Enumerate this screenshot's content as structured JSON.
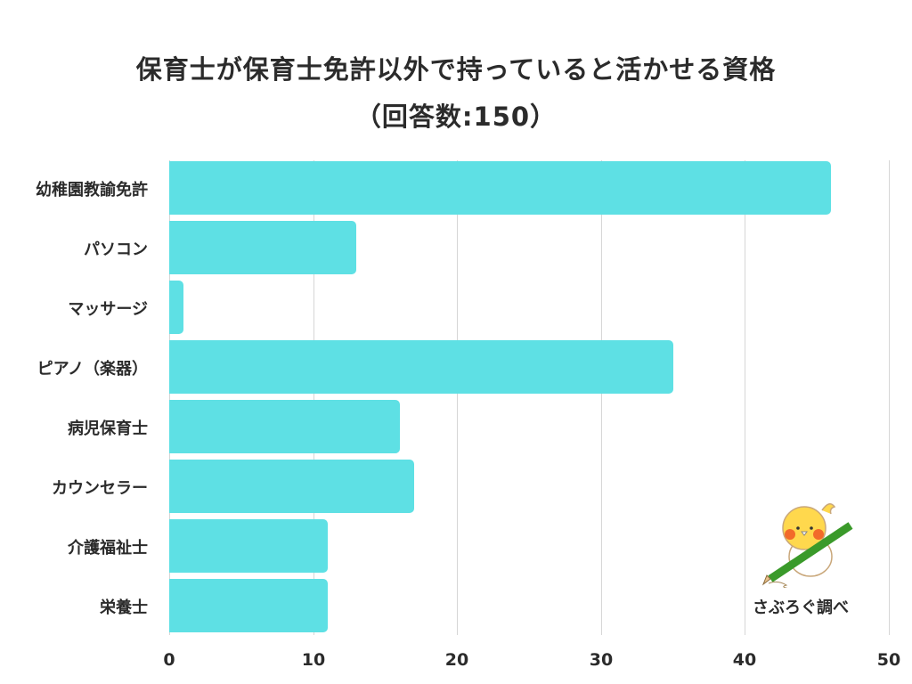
{
  "title_line1": "保育士が保育士免許以外で持っていると活かせる資格",
  "title_line2": "（回答数:150）",
  "credit": "さぶろぐ調べ",
  "colors": {
    "bar": "#5ee0e4",
    "grid": "#d6d6d6",
    "text": "#2b2b2b"
  },
  "chart_data": {
    "type": "bar",
    "orientation": "horizontal",
    "title": "保育士が保育士免許以外で持っていると活かせる資格（回答数:150）",
    "categories": [
      "幼稚園教諭免許",
      "パソコン",
      "マッサージ",
      "ピアノ（楽器）",
      "病児保育士",
      "カウンセラー",
      "介護福祉士",
      "栄養士"
    ],
    "values": [
      46,
      13,
      1,
      35,
      16,
      17,
      11,
      11
    ],
    "xlabel": "",
    "ylabel": "",
    "xlim": [
      0,
      50
    ],
    "xticks": [
      "0",
      "10",
      "20",
      "30",
      "40",
      "50"
    ],
    "grid": true,
    "legend": "none"
  }
}
